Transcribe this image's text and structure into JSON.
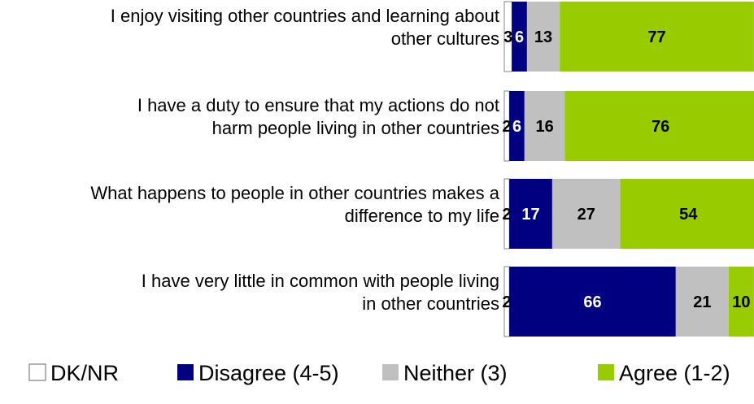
{
  "chart_data": {
    "type": "bar",
    "orientation": "horizontal",
    "stacked": true,
    "categories": [
      [
        "I enjoy visiting other countries and learning about",
        "other cultures"
      ],
      [
        "I have a duty to ensure that my actions do not",
        "harm people living in other countries"
      ],
      [
        "What happens to people in other countries makes a",
        "difference to my life"
      ],
      [
        "I have very little in common with people living",
        "in other countries"
      ]
    ],
    "series": [
      {
        "name": "DK/NR",
        "color": "#FFFFFF",
        "label_color": "#000000",
        "values": [
          3,
          2,
          2,
          2
        ]
      },
      {
        "name": "Disagree (4-5)",
        "color": "#000080",
        "label_color": "#FFFFFF",
        "values": [
          6,
          6,
          17,
          66
        ]
      },
      {
        "name": "Neither (3)",
        "color": "#C0C0C0",
        "label_color": "#000000",
        "values": [
          13,
          16,
          27,
          21
        ]
      },
      {
        "name": "Agree (1-2)",
        "color": "#99CC00",
        "label_color": "#000000",
        "values": [
          77,
          76,
          54,
          10
        ]
      }
    ],
    "xlim": [
      0,
      100
    ],
    "grid": false,
    "legend_position": "bottom"
  }
}
